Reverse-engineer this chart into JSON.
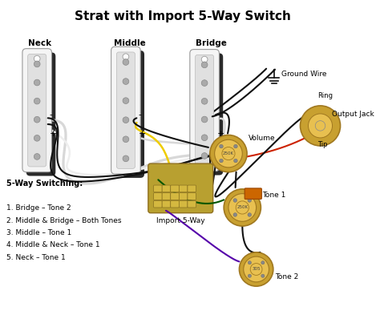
{
  "title": "Strat with Import 5-Way Switch",
  "title_fontsize": 11,
  "title_fontweight": "bold",
  "bg_color": "#ffffff",
  "fig_width": 4.74,
  "fig_height": 4.13,
  "dpi": 100,
  "switching_lines": [
    "5-Way Switching:",
    "",
    "1. Bridge – Tone 2",
    "2. Middle & Bridge – Both Tones",
    "3. Middle – Tone 1",
    "4. Middle & Neck – Tone 1",
    "5. Neck – Tone 1"
  ],
  "label_neck": "Neck",
  "label_middle": "Middle",
  "label_bridge": "Bridge",
  "label_ground": "Ground Wire",
  "label_volume": "Volume",
  "label_ring": "Ring",
  "label_tip": "Tip",
  "label_output_jack": "Output Jack",
  "label_tone1": "Tone 1",
  "label_tone2": "Tone 2",
  "label_import": "Import 5-Way",
  "col_black": "#111111",
  "col_white": "#d8d8d8",
  "col_yellow": "#eecc00",
  "col_red": "#cc2200",
  "col_green": "#005500",
  "col_purple": "#5500aa",
  "col_pickup_shadow": "#2a2a2a",
  "col_pickup_body": "#f5f5f5",
  "col_pickup_inner": "#e0e0e0",
  "col_pole": "#aaaaaa",
  "col_pot": "#c8a030",
  "col_pot_center": "#e8c050",
  "col_pot_rim": "#a07820",
  "col_switch_body": "#b8a030",
  "col_switch_contact": "#d4b840",
  "col_cap": "#cc6600",
  "col_screw": "#888888"
}
